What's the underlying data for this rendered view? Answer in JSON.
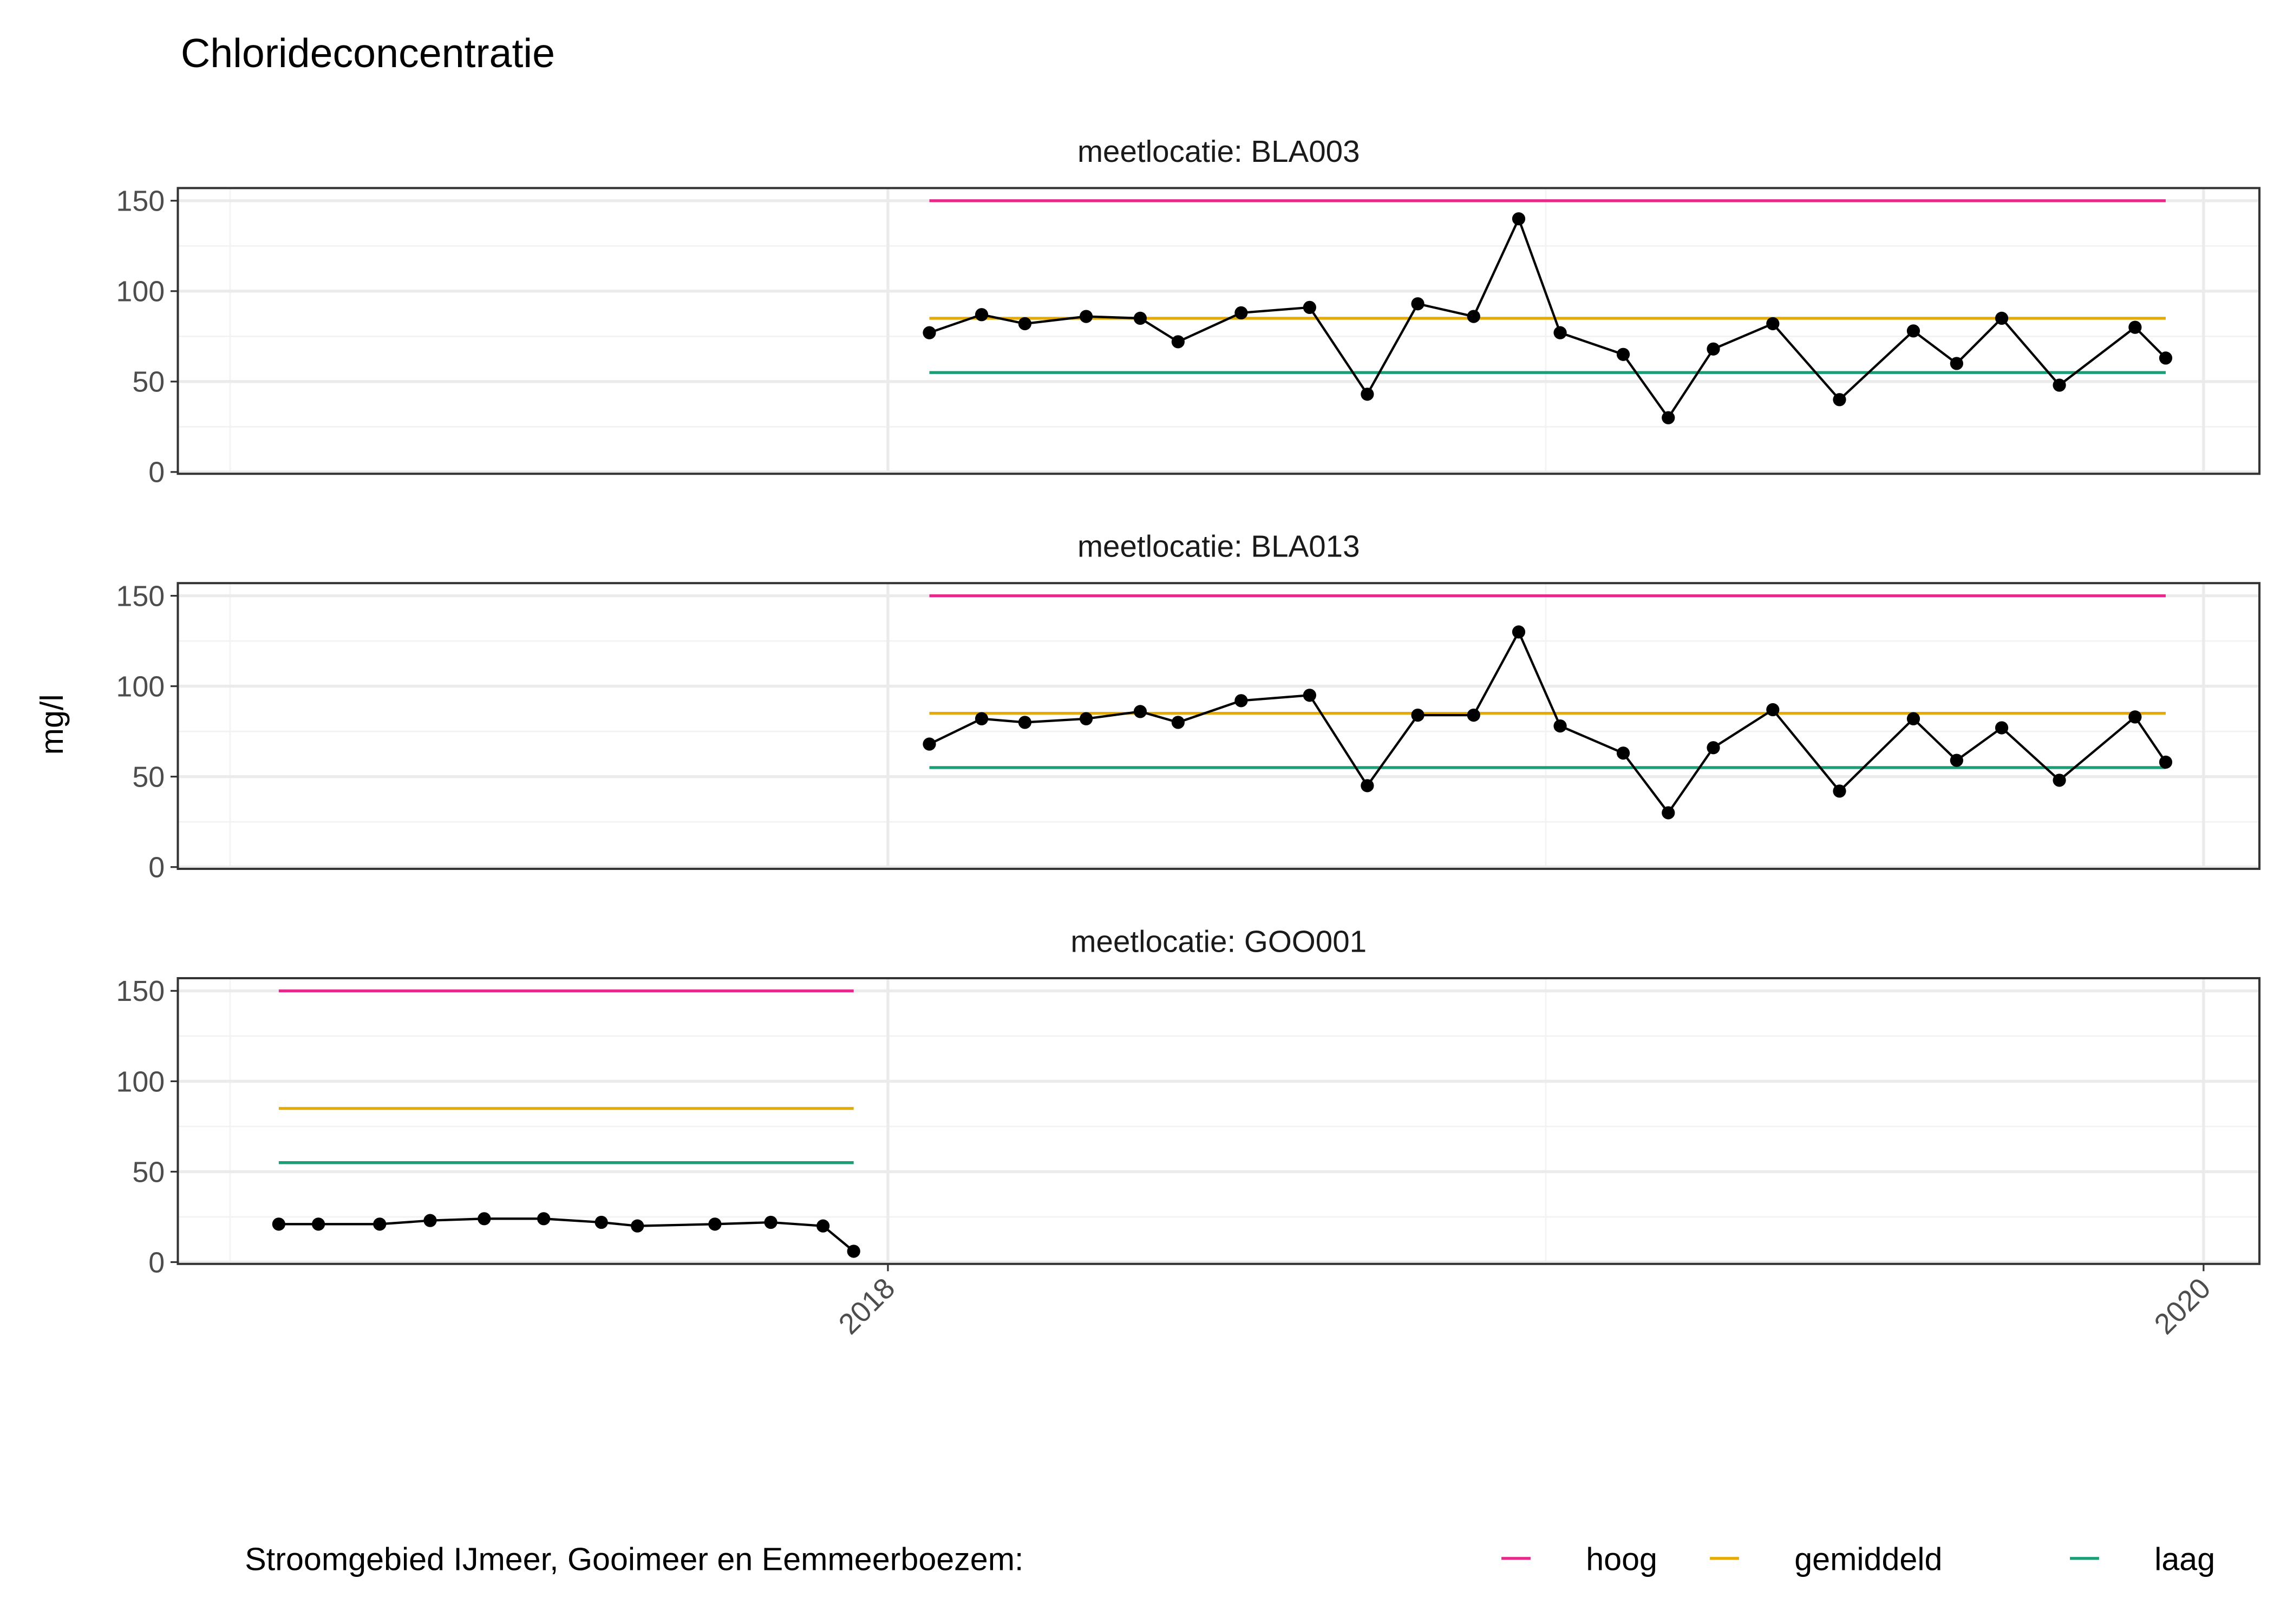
{
  "chart_data": {
    "type": "line",
    "title": "Chlorideconcentratie",
    "ylabel": "mg/l",
    "xlabel": "",
    "ylim": [
      -1,
      157
    ],
    "xlim": [
      "2016-12-03",
      "2020-02-01"
    ],
    "y_ticks": [
      0,
      50,
      100,
      150
    ],
    "x_ticks": [
      "2018",
      "2020"
    ],
    "grid": true,
    "legend": {
      "title": "Stroomgebied IJmeer, Gooimeer en Eemmeerboezem:",
      "placement": "bottom",
      "entries": [
        {
          "label": "hoog",
          "value": 150,
          "color": "#E7298A"
        },
        {
          "label": "gemiddeld",
          "value": 85,
          "color": "#E6AB02"
        },
        {
          "label": "laag",
          "value": 55,
          "color": "#1B9E77"
        }
      ]
    },
    "panels": [
      {
        "strip": "meetlocatie: BLA003",
        "dates": [
          "2018-01-24",
          "2018-02-22",
          "2018-03-18",
          "2018-04-21",
          "2018-05-21",
          "2018-06-11",
          "2018-07-16",
          "2018-08-23",
          "2018-09-24",
          "2018-10-22",
          "2018-11-22",
          "2018-12-17",
          "2019-01-09",
          "2019-02-13",
          "2019-03-10",
          "2019-04-04",
          "2019-05-07",
          "2019-06-13",
          "2019-07-24",
          "2019-08-17",
          "2019-09-11",
          "2019-10-13",
          "2019-11-24",
          "2019-12-11"
        ],
        "values": [
          77,
          87,
          82,
          86,
          85,
          72,
          88,
          91,
          43,
          93,
          86,
          140,
          77,
          65,
          30,
          68,
          82,
          40,
          78,
          60,
          85,
          48,
          80,
          63
        ]
      },
      {
        "strip": "meetlocatie: BLA013",
        "dates": [
          "2018-01-24",
          "2018-02-22",
          "2018-03-18",
          "2018-04-21",
          "2018-05-21",
          "2018-06-11",
          "2018-07-16",
          "2018-08-23",
          "2018-09-24",
          "2018-10-22",
          "2018-11-22",
          "2018-12-17",
          "2019-01-09",
          "2019-02-13",
          "2019-03-10",
          "2019-04-04",
          "2019-05-07",
          "2019-06-13",
          "2019-07-24",
          "2019-08-17",
          "2019-09-11",
          "2019-10-13",
          "2019-11-24",
          "2019-12-11"
        ],
        "values": [
          68,
          82,
          80,
          82,
          86,
          80,
          92,
          95,
          45,
          84,
          84,
          130,
          78,
          63,
          30,
          66,
          87,
          42,
          82,
          59,
          77,
          48,
          83,
          58
        ]
      },
      {
        "strip": "meetlocatie: GOO001",
        "dates": [
          "2017-01-28",
          "2017-02-19",
          "2017-03-25",
          "2017-04-22",
          "2017-05-22",
          "2017-06-24",
          "2017-07-26",
          "2017-08-15",
          "2017-09-27",
          "2017-10-28",
          "2017-11-26",
          "2017-12-13"
        ],
        "values": [
          21,
          21,
          21,
          23,
          24,
          24,
          22,
          20,
          21,
          22,
          20,
          6
        ]
      }
    ]
  }
}
